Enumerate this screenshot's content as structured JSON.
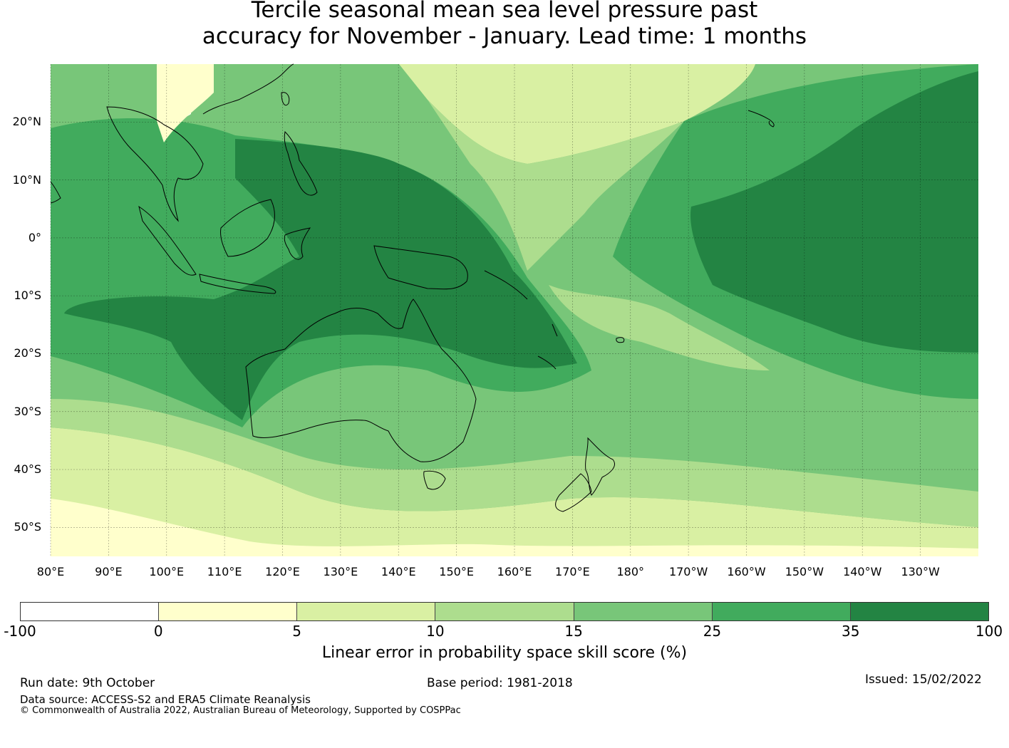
{
  "title": {
    "line1": "Tercile seasonal mean sea level pressure past",
    "line2": "accuracy for November - January. Lead time: 1 months"
  },
  "map": {
    "lat_labels": [
      "20°N",
      "10°N",
      "0°",
      "10°S",
      "20°S",
      "30°S",
      "40°S",
      "50°S"
    ],
    "lon_labels": [
      "80°E",
      "90°E",
      "100°E",
      "110°E",
      "120°E",
      "130°E",
      "140°E",
      "150°E",
      "160°E",
      "170°E",
      "180°",
      "170°W",
      "160°W",
      "150°W",
      "140°W",
      "130°W"
    ],
    "gridlines": true,
    "lat_range": [
      -55,
      30
    ],
    "lon_range": [
      80,
      240
    ]
  },
  "colorbar": {
    "ticks": [
      "-100",
      "0",
      "5",
      "10",
      "15",
      "25",
      "35",
      "100"
    ],
    "colors": [
      "#ffffff",
      "#ffffcc",
      "#d9f0a3",
      "#addd8e",
      "#78c679",
      "#41ab5d",
      "#238443"
    ],
    "label": "Linear error in probability space skill score (%)"
  },
  "footer": {
    "run_date": "Run date: 9th October",
    "base_period": "Base period: 1981-2018",
    "issued": "Issued: 15/02/2022",
    "data_source": "Data source: ACCESS-S2 and ERA5 Climate Reanalysis",
    "copyright": "© Commonwealth of Australia 2022, Australian Bureau of Meteorology, Supported by COSPPac"
  }
}
